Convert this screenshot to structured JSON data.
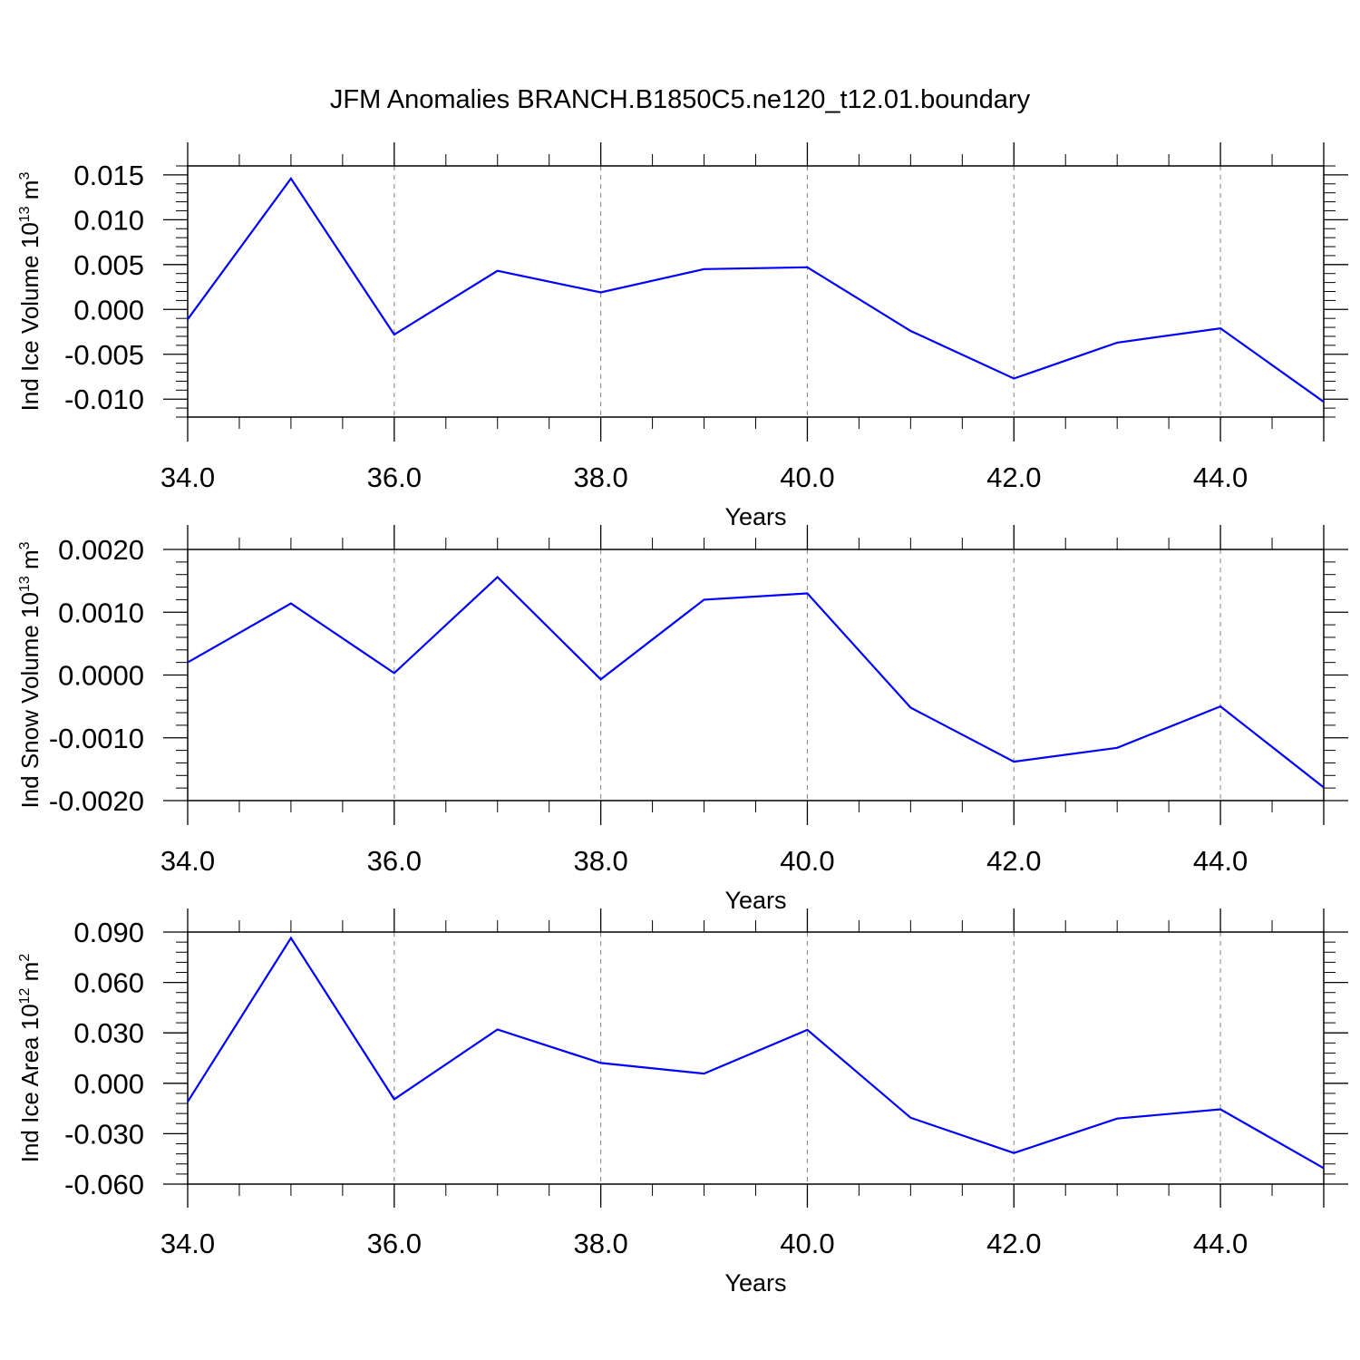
{
  "figure": {
    "title": "JFM Anomalies BRANCH.B1850C5.ne120_t12.01.boundary"
  },
  "colors": {
    "series": "#0000ff",
    "axes": "#000000",
    "grid": "#808080"
  },
  "chart_data": [
    {
      "type": "line",
      "title": "",
      "xlabel": "Years",
      "ylabel": {
        "text": "Ind Ice Volume 10",
        "sup": "13",
        "unit": " m",
        "unit_sup": "3"
      },
      "xlim": [
        34,
        45
      ],
      "ylim": [
        -0.012,
        0.016
      ],
      "xticks": [
        34,
        36,
        38,
        40,
        42,
        44
      ],
      "xtick_labels": [
        "34.0",
        "36.0",
        "38.0",
        "40.0",
        "42.0",
        "44.0"
      ],
      "yticks": [
        -0.01,
        -0.005,
        0.0,
        0.005,
        0.01,
        0.015
      ],
      "ytick_labels": [
        "-0.010",
        "-0.005",
        "0.000",
        "0.005",
        "0.010",
        "0.015"
      ],
      "grid": "vertical-dashed",
      "series": [
        {
          "name": "Ind Ice Volume",
          "x": [
            34,
            35,
            36,
            37,
            38,
            39,
            40,
            41,
            42,
            43,
            44,
            45
          ],
          "y": [
            -0.0011,
            0.0146,
            -0.0028,
            0.0043,
            0.0019,
            0.0045,
            0.0047,
            -0.0024,
            -0.0077,
            -0.0037,
            -0.0021,
            -0.0103
          ]
        }
      ]
    },
    {
      "type": "line",
      "title": "",
      "xlabel": "Years",
      "ylabel": {
        "text": "Ind Snow Volume 10",
        "sup": "13",
        "unit": " m",
        "unit_sup": "3"
      },
      "xlim": [
        34,
        45
      ],
      "ylim": [
        -0.002,
        0.002
      ],
      "xticks": [
        34,
        36,
        38,
        40,
        42,
        44
      ],
      "xtick_labels": [
        "34.0",
        "36.0",
        "38.0",
        "40.0",
        "42.0",
        "44.0"
      ],
      "yticks": [
        -0.002,
        -0.001,
        0.0,
        0.001,
        0.002
      ],
      "ytick_labels": [
        "-0.0020",
        "-0.0010",
        "0.0000",
        "0.0010",
        "0.0020"
      ],
      "grid": "vertical-dashed",
      "series": [
        {
          "name": "Ind Snow Volume",
          "x": [
            34,
            35,
            36,
            37,
            38,
            39,
            40,
            41,
            42,
            43,
            44,
            45
          ],
          "y": [
            0.0002,
            0.00114,
            3e-05,
            0.00156,
            -7e-05,
            0.0012,
            0.0013,
            -0.00052,
            -0.00138,
            -0.00116,
            -0.0005,
            -0.00179
          ]
        }
      ]
    },
    {
      "type": "line",
      "title": "",
      "xlabel": "Years",
      "ylabel": {
        "text": "Ind Ice Area 10",
        "sup": "12",
        "unit": " m",
        "unit_sup": "2"
      },
      "xlim": [
        34,
        45
      ],
      "ylim": [
        -0.06,
        0.09
      ],
      "xticks": [
        34,
        36,
        38,
        40,
        42,
        44
      ],
      "xtick_labels": [
        "34.0",
        "36.0",
        "38.0",
        "40.0",
        "42.0",
        "44.0"
      ],
      "yticks": [
        -0.06,
        -0.03,
        0.0,
        0.03,
        0.06,
        0.09
      ],
      "ytick_labels": [
        "-0.060",
        "-0.030",
        "0.000",
        "0.030",
        "0.060",
        "0.090"
      ],
      "grid": "vertical-dashed",
      "series": [
        {
          "name": "Ind Ice Area",
          "x": [
            34,
            35,
            36,
            37,
            38,
            39,
            40,
            41,
            42,
            43,
            44,
            45
          ],
          "y": [
            -0.011,
            0.0865,
            -0.0095,
            0.032,
            0.0121,
            0.0058,
            0.0318,
            -0.0205,
            -0.0415,
            -0.021,
            -0.0155,
            -0.0505
          ]
        }
      ]
    }
  ]
}
